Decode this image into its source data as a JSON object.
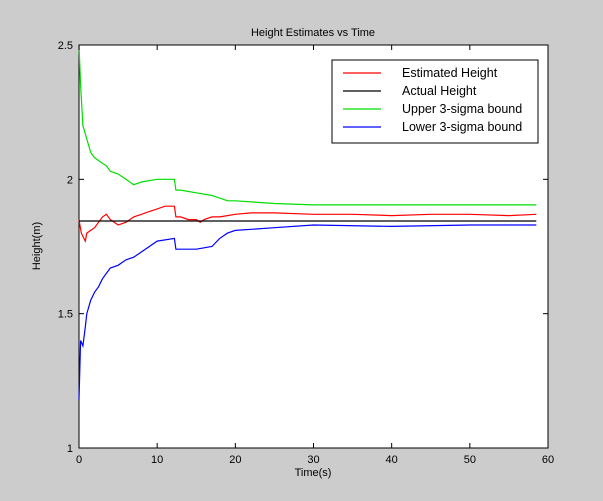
{
  "chart_data": {
    "type": "line",
    "title": "Height Estimates vs Time",
    "xlabel": "Time(s)",
    "ylabel": "Height(m)",
    "xlim": [
      0,
      60
    ],
    "ylim": [
      1,
      2.5
    ],
    "xticks": [
      0,
      10,
      20,
      30,
      40,
      50,
      60
    ],
    "yticks": [
      1,
      1.5,
      2,
      2.5
    ],
    "grid": false,
    "legend_position": "top-right",
    "series": [
      {
        "name": "Estimated Height",
        "color": "#ff0000",
        "x": [
          0,
          0.3,
          0.8,
          1.0,
          1.5,
          2.0,
          2.5,
          3.0,
          3.5,
          4.0,
          4.5,
          5.0,
          6.0,
          7.0,
          8.0,
          9.0,
          10.0,
          11.0,
          12.2,
          12.4,
          13.0,
          14.0,
          15.0,
          15.5,
          16.0,
          17.0,
          18.0,
          19.0,
          20.0,
          22.0,
          25.0,
          30.0,
          35.0,
          40.0,
          45.0,
          50.0,
          55.0,
          58.5
        ],
        "y": [
          1.85,
          1.8,
          1.77,
          1.8,
          1.81,
          1.82,
          1.84,
          1.86,
          1.87,
          1.85,
          1.84,
          1.83,
          1.84,
          1.86,
          1.87,
          1.88,
          1.89,
          1.9,
          1.9,
          1.86,
          1.86,
          1.85,
          1.85,
          1.84,
          1.85,
          1.86,
          1.86,
          1.865,
          1.87,
          1.875,
          1.875,
          1.87,
          1.87,
          1.865,
          1.87,
          1.87,
          1.865,
          1.87
        ]
      },
      {
        "name": "Actual Height",
        "color": "#000000",
        "x": [
          0,
          58.5
        ],
        "y": [
          1.845,
          1.845
        ]
      },
      {
        "name": "Upper 3-sigma bound",
        "color": "#00dd00",
        "x": [
          0,
          0.2,
          0.5,
          1.0,
          1.5,
          2.0,
          3.0,
          3.5,
          4.0,
          5.0,
          6.0,
          7.0,
          8.0,
          10.0,
          12.2,
          12.4,
          13.0,
          15.0,
          17.0,
          18.0,
          19.0,
          20.0,
          25.0,
          30.0,
          40.0,
          50.0,
          58.5
        ],
        "y": [
          2.5,
          2.35,
          2.2,
          2.15,
          2.1,
          2.08,
          2.06,
          2.05,
          2.03,
          2.02,
          2.0,
          1.98,
          1.99,
          2.0,
          2.0,
          1.96,
          1.96,
          1.95,
          1.94,
          1.93,
          1.92,
          1.92,
          1.91,
          1.905,
          1.905,
          1.905,
          1.905
        ]
      },
      {
        "name": "Lower 3-sigma bound",
        "color": "#0000ff",
        "x": [
          0,
          0.2,
          0.5,
          0.8,
          1.0,
          1.5,
          2.0,
          2.5,
          3.0,
          4.0,
          5.0,
          6.0,
          7.0,
          8.0,
          10.0,
          12.2,
          12.4,
          13.0,
          15.0,
          17.0,
          18.0,
          19.0,
          20.0,
          25.0,
          30.0,
          40.0,
          50.0,
          58.5
        ],
        "y": [
          1.18,
          1.4,
          1.38,
          1.45,
          1.5,
          1.55,
          1.58,
          1.6,
          1.63,
          1.67,
          1.68,
          1.7,
          1.71,
          1.73,
          1.77,
          1.78,
          1.74,
          1.74,
          1.74,
          1.75,
          1.78,
          1.8,
          1.81,
          1.82,
          1.83,
          1.825,
          1.83,
          1.83
        ]
      }
    ]
  }
}
